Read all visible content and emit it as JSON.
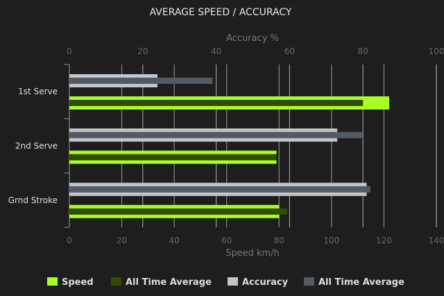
{
  "chart_data": {
    "type": "bar",
    "orientation": "horizontal",
    "title": "AVERAGE SPEED / ACCURACY",
    "categories": [
      "1st Serve",
      "2nd Serve",
      "Grnd Stroke"
    ],
    "speed_axis": {
      "label": "Speed km/h",
      "range": [
        0,
        140
      ],
      "ticks": [
        0,
        20,
        40,
        60,
        80,
        100,
        120,
        140
      ],
      "position": "bottom"
    },
    "accuracy_axis": {
      "label": "Accuracy %",
      "range": [
        0,
        100
      ],
      "ticks": [
        0,
        20,
        40,
        60,
        80,
        100
      ],
      "position": "top"
    },
    "grid": true,
    "legend_position": "bottom",
    "series": [
      {
        "name": "Speed",
        "axis": "speed",
        "color": "#aaff22",
        "values": [
          122,
          79,
          80
        ]
      },
      {
        "name": "All Time Average",
        "axis": "speed",
        "color": "#334d00",
        "values": [
          112,
          79,
          83
        ]
      },
      {
        "name": "Accuracy",
        "axis": "accuracy",
        "color": "#c3c6c9",
        "values": [
          24,
          73,
          81
        ]
      },
      {
        "name": "All Time Average",
        "axis": "accuracy",
        "color": "#545a61",
        "values": [
          39,
          80,
          82
        ]
      }
    ]
  }
}
